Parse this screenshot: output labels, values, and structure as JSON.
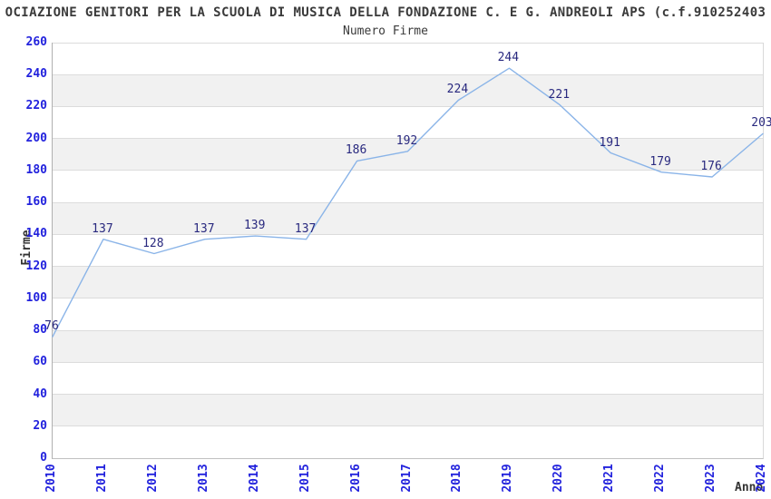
{
  "title": "OCIAZIONE GENITORI PER LA SCUOLA DI MUSICA DELLA FONDAZIONE C. E G. ANDREOLI APS (c.f.910252403",
  "subtitle": "Numero Firme",
  "chart_data": {
    "type": "line",
    "title": "Numero Firme",
    "xlabel": "Anno",
    "ylabel": "Firme",
    "categories": [
      "2010",
      "2011",
      "2012",
      "2013",
      "2014",
      "2015",
      "2016",
      "2017",
      "2018",
      "2019",
      "2020",
      "2021",
      "2022",
      "2023",
      "2024"
    ],
    "values": [
      76,
      137,
      128,
      137,
      139,
      137,
      186,
      192,
      224,
      244,
      221,
      191,
      179,
      176,
      203
    ],
    "ylim": [
      0,
      260
    ],
    "ytick_step": 20,
    "grid": "horizontal",
    "legend_position": "none",
    "colors": {
      "line": "#8ab4e8",
      "tick_labels": "#2222dd",
      "value_labels": "#29297f",
      "band_fill": "#f1f1f1",
      "gridline": "#dcdcdc",
      "title_text": "#3a3a3a"
    }
  }
}
